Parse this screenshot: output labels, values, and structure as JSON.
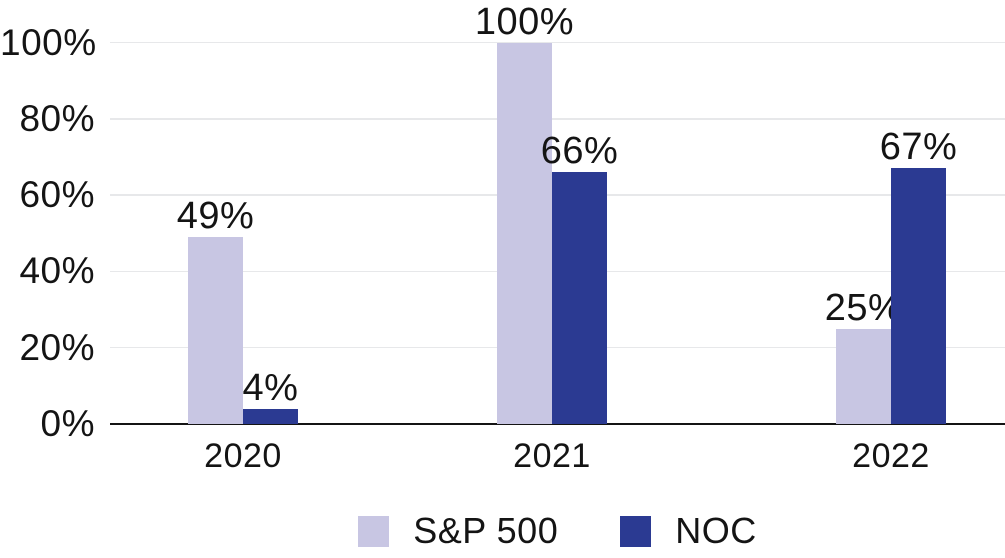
{
  "chart_data": {
    "type": "bar",
    "bar_layout": "grouped",
    "title": "",
    "xlabel": "",
    "ylabel": "",
    "categories": [
      "2020",
      "2021",
      "2022"
    ],
    "series": [
      {
        "name": "S&P 500",
        "color": "#c8c6e3",
        "values": [
          49,
          100,
          25
        ],
        "value_labels": [
          "49%",
          "100%",
          "25%"
        ]
      },
      {
        "name": "NOC",
        "color": "#2b3a92",
        "values": [
          4,
          66,
          67
        ],
        "value_labels": [
          "4%",
          "66%",
          "67%"
        ]
      }
    ],
    "ylim": [
      0,
      100
    ],
    "yticks": [
      {
        "value": 0,
        "label": "0%"
      },
      {
        "value": 20,
        "label": "20%"
      },
      {
        "value": 40,
        "label": "40%"
      },
      {
        "value": 60,
        "label": "60%"
      },
      {
        "value": 80,
        "label": "80%"
      },
      {
        "value": 100,
        "label": "100%"
      }
    ],
    "grid": true,
    "legend_position": "bottom"
  },
  "colors": {
    "sp500_series": "#c8c6e3",
    "noc_series": "#2b3a92",
    "gridline": "#e7e8ea",
    "axis_line": "#141414",
    "text": "#141414",
    "background": "#ffffff"
  }
}
